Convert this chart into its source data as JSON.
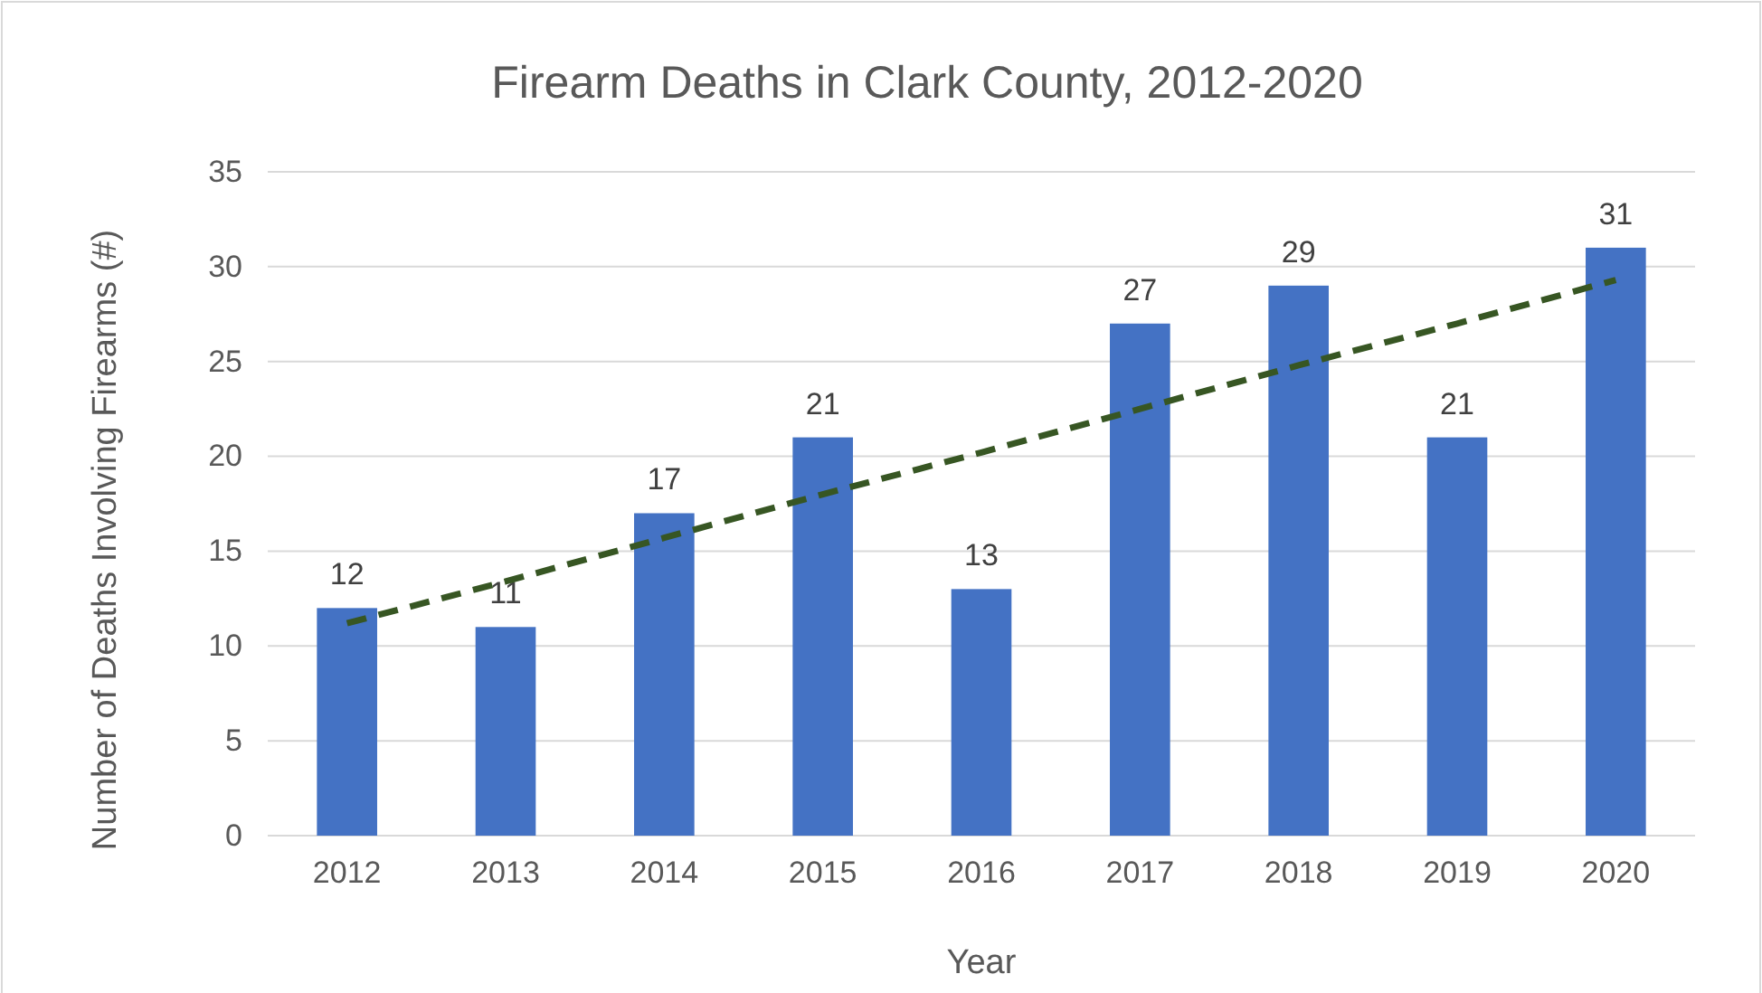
{
  "chart_data": {
    "type": "bar",
    "title": "Firearm Deaths in Clark County, 2012-2020",
    "xlabel": "Year",
    "ylabel": "Number of Deaths  Involving Firearms (#)",
    "categories": [
      "2012",
      "2013",
      "2014",
      "2015",
      "2016",
      "2017",
      "2018",
      "2019",
      "2020"
    ],
    "series": [
      {
        "color": "#4472c4",
        "values": [
          12,
          11,
          17,
          21,
          13,
          27,
          29,
          21,
          31
        ],
        "value_labels": [
          "12",
          "11",
          "17",
          "21",
          "13",
          "27",
          "29",
          "21",
          "31"
        ]
      },
      {
        "type": "line",
        "color": "#375623",
        "line_style": "dashed",
        "marker": "none",
        "values": [
          11.2,
          13.4,
          15.7,
          18.0,
          20.2,
          22.5,
          24.8,
          27.0,
          29.3
        ]
      }
    ],
    "ylim": [
      0,
      35
    ],
    "yticks": [
      0,
      5,
      10,
      15,
      20,
      25,
      30,
      35
    ],
    "grid": "y"
  }
}
